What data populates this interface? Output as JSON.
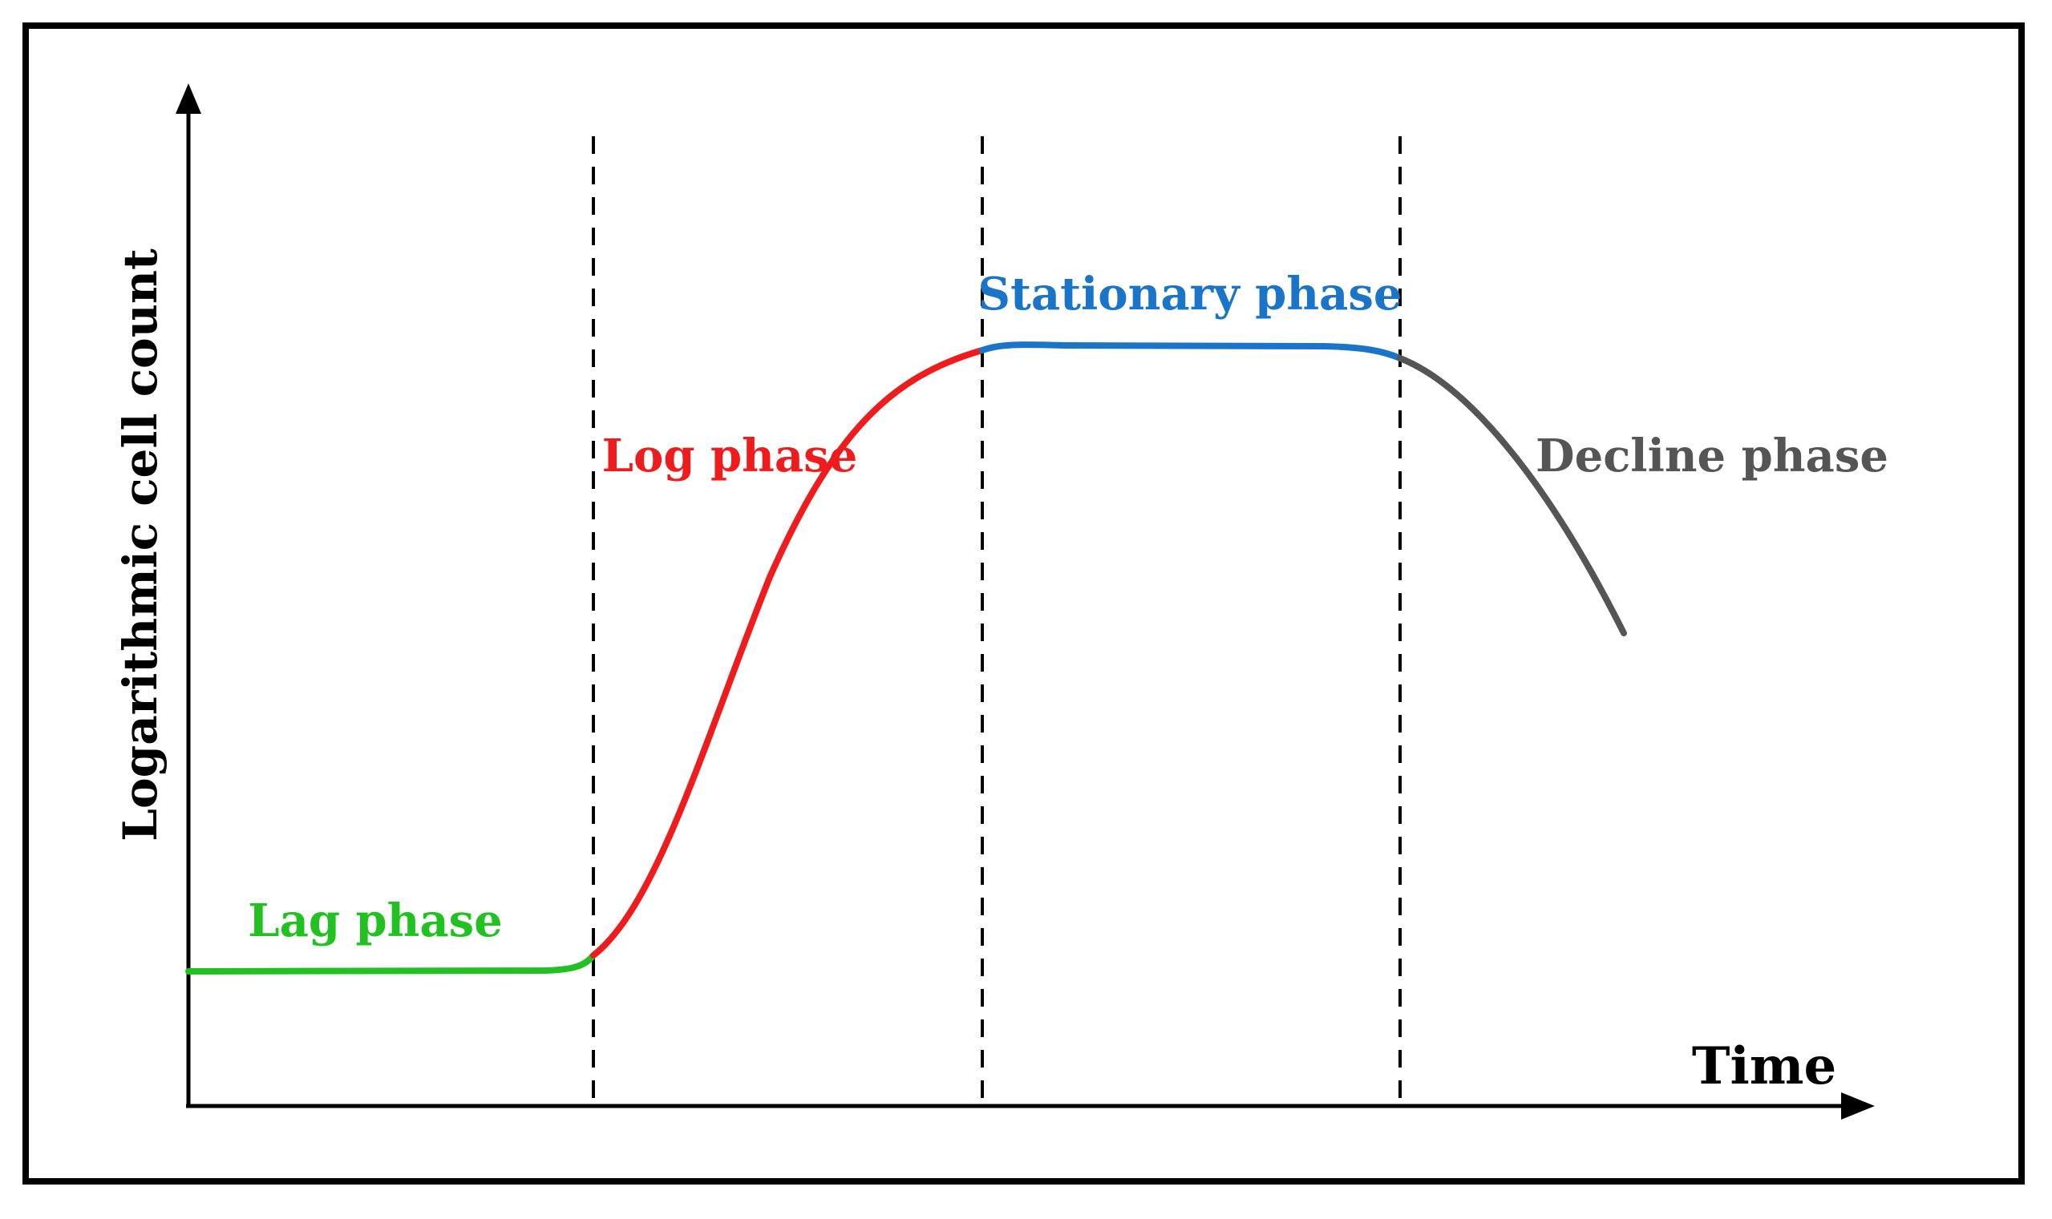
{
  "axes": {
    "y_label": "Logarithmic cell count",
    "x_label": "Time"
  },
  "phases": [
    {
      "id": "lag",
      "label": "Lag phase",
      "color": "#22c122"
    },
    {
      "id": "log",
      "label": "Log phase",
      "color": "#ee1c1c"
    },
    {
      "id": "stationary",
      "label": "Stationary phase",
      "color": "#1a74c8"
    },
    {
      "id": "decline",
      "label": "Decline phase",
      "color": "#555555"
    }
  ]
}
